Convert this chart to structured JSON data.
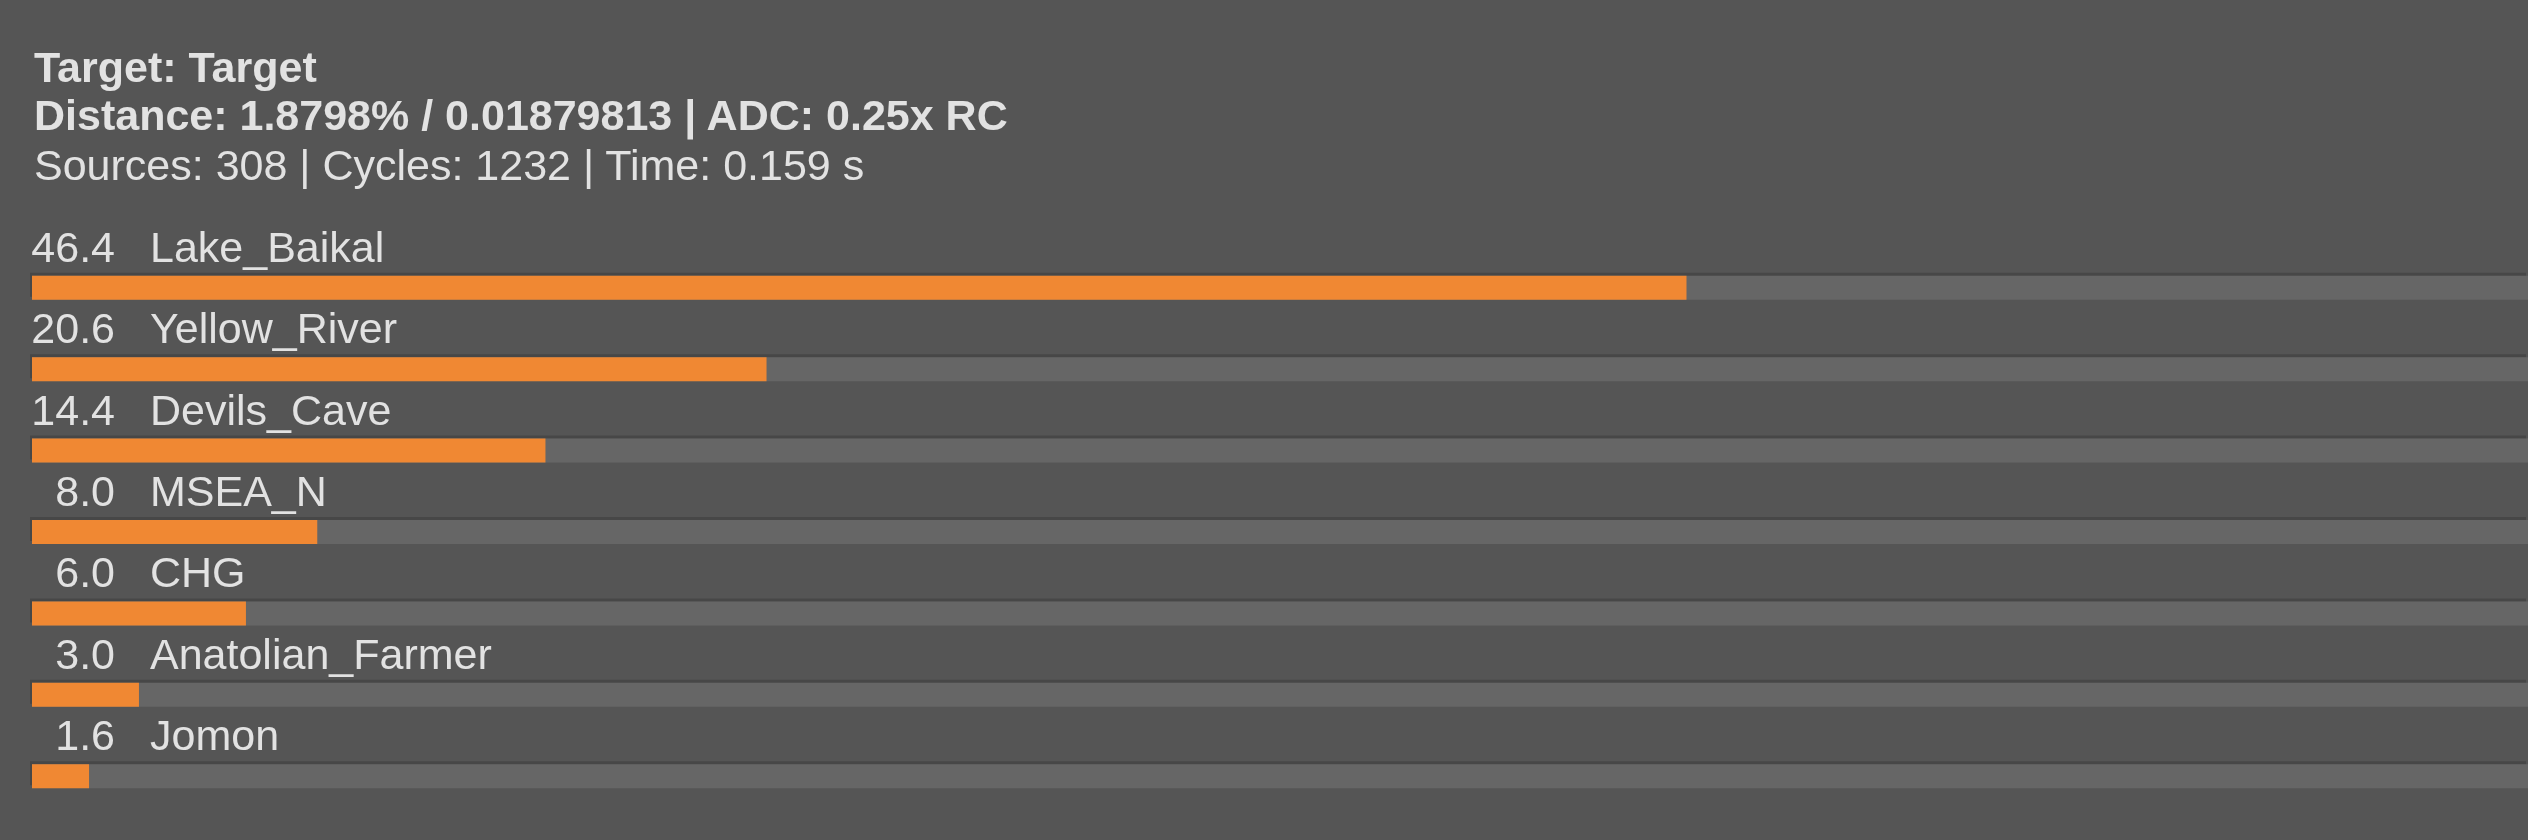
{
  "chart_data": {
    "type": "bar",
    "orientation": "horizontal",
    "title": "Target: Target",
    "subtitle": "Distance: 1.8798% / 0.01879813 | ADC: 0.25x RC",
    "annotations": [
      "Sources: 308 | Cycles: 1232 | Time: 0.159 s"
    ],
    "categories": [
      "Lake_Baikal",
      "Yellow_River",
      "Devils_Cave",
      "MSEA_N",
      "CHG",
      "Anatolian_Farmer",
      "Jomon"
    ],
    "values": [
      46.4,
      20.6,
      14.4,
      8.0,
      6.0,
      3.0,
      1.6
    ],
    "value_labels": [
      "46.4",
      "20.6",
      "14.4",
      "8.0",
      "6.0",
      "3.0",
      "1.6"
    ],
    "color": "#f08833",
    "xlim": [
      0,
      70
    ],
    "tick_labels": "y"
  }
}
